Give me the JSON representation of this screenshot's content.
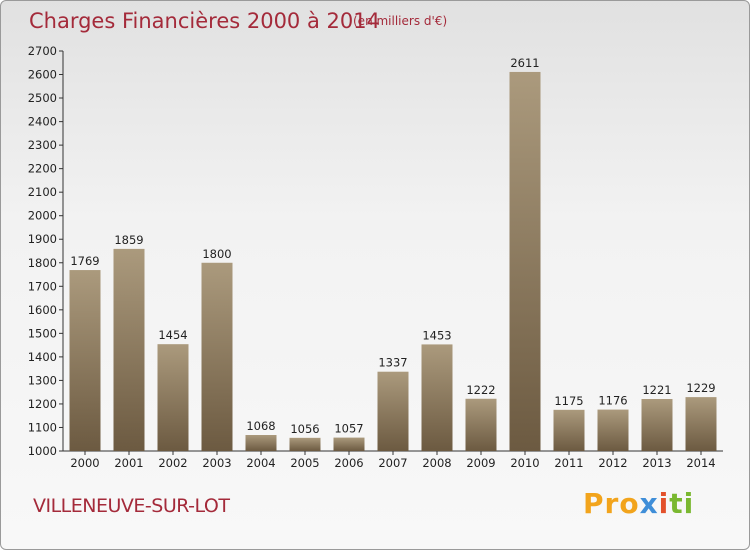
{
  "header": {
    "title": "Charges Financières 2000 à 2014",
    "subtitle": "(en milliers d'€)"
  },
  "footer": {
    "place": "VILLENEUVE-SUR-LOT",
    "brand": {
      "p1": "Pro",
      "p2": "x",
      "p3": "i",
      "p4": "ti"
    }
  },
  "chart_data": {
    "type": "bar",
    "title": "Charges Financières 2000 à 2014",
    "subtitle": "(en milliers d'€)",
    "categories": [
      "2000",
      "2001",
      "2002",
      "2003",
      "2004",
      "2005",
      "2006",
      "2007",
      "2008",
      "2009",
      "2010",
      "2011",
      "2012",
      "2013",
      "2014"
    ],
    "values": [
      1769,
      1859,
      1454,
      1800,
      1068,
      1056,
      1057,
      1337,
      1453,
      1222,
      2611,
      1175,
      1176,
      1221,
      1229
    ],
    "ylim": [
      1000,
      2700
    ],
    "ytick_step": 100,
    "grid": false,
    "legend": "none",
    "colors": {
      "bar_top": "#ab9a7d",
      "bar_bottom": "#6c5a41",
      "axis": "#333333"
    }
  }
}
